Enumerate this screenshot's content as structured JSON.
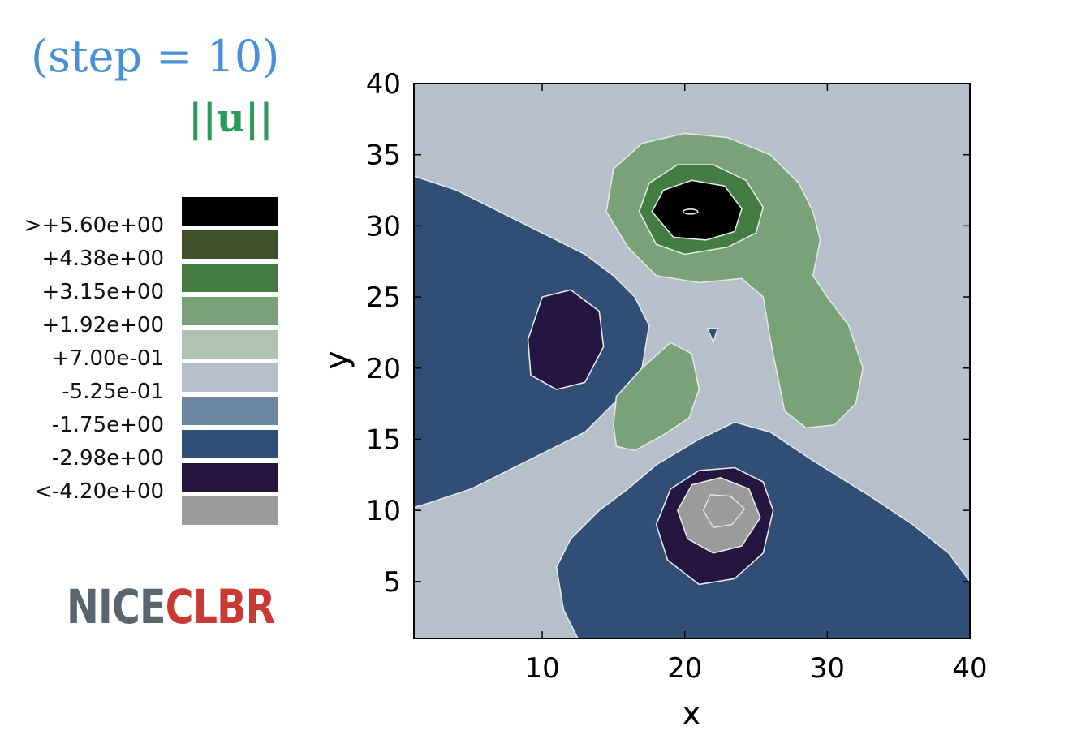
{
  "header": {
    "step_title": "(step = 10)",
    "field_name": "||u||"
  },
  "logo": {
    "part1": "NICE",
    "part2": "CLBR",
    "color1": "#5b6570",
    "color2": "#c93a35"
  },
  "chart_data": {
    "type": "contour",
    "xlabel": "x",
    "ylabel": "y",
    "xlim": [
      1,
      40
    ],
    "ylim": [
      1,
      40
    ],
    "xticks": [
      10,
      20,
      30,
      40
    ],
    "yticks": [
      5,
      10,
      15,
      20,
      25,
      30,
      35,
      40
    ],
    "grid": false,
    "legend_placement": "left",
    "levels": [
      {
        "label": ">+5.60e+00",
        "color": "#000000"
      },
      {
        "label": "+4.38e+00",
        "color": "#3f5128"
      },
      {
        "label": "+3.15e+00",
        "color": "#437d44"
      },
      {
        "label": "+1.92e+00",
        "color": "#79a279"
      },
      {
        "label": "+7.00e-01",
        "color": "#b0c2b2"
      },
      {
        "label": "-5.25e-01",
        "color": "#b5c0ca"
      },
      {
        "label": "-1.75e+00",
        "color": "#6d88a3"
      },
      {
        "label": "-2.98e+00",
        "color": "#314f76"
      },
      {
        "label": "<-4.20e+00",
        "color": "#241641"
      },
      {
        "label": "",
        "color": "#9b9b9b"
      }
    ],
    "regions": [
      {
        "name": "left-lobe",
        "level": 7,
        "points": [
          [
            1,
            33.5
          ],
          [
            4,
            32.5
          ],
          [
            8,
            30.5
          ],
          [
            11,
            29
          ],
          [
            13,
            28
          ],
          [
            15,
            26.5
          ],
          [
            16.5,
            25
          ],
          [
            17.5,
            23
          ],
          [
            17,
            20
          ],
          [
            15.5,
            18
          ],
          [
            13,
            15.5
          ],
          [
            9,
            13.5
          ],
          [
            5,
            11.5
          ],
          [
            2,
            10.5
          ],
          [
            1,
            10.2
          ]
        ]
      },
      {
        "name": "left-core",
        "level": 8,
        "points": [
          [
            9,
            22
          ],
          [
            10,
            25
          ],
          [
            12,
            25.5
          ],
          [
            14,
            24
          ],
          [
            14.3,
            21.5
          ],
          [
            13,
            19
          ],
          [
            11,
            18.5
          ],
          [
            9.2,
            19.5
          ]
        ]
      },
      {
        "name": "bottom-lobe",
        "level": 7,
        "points": [
          [
            12.5,
            1
          ],
          [
            11.5,
            3
          ],
          [
            11,
            6
          ],
          [
            12,
            8
          ],
          [
            14,
            10
          ],
          [
            16,
            11.5
          ],
          [
            18,
            13.2
          ],
          [
            21,
            15
          ],
          [
            23.5,
            16.2
          ],
          [
            26,
            15.5
          ],
          [
            29,
            13.5
          ],
          [
            33,
            11
          ],
          [
            36,
            9
          ],
          [
            38.5,
            7
          ],
          [
            40,
            5
          ],
          [
            40,
            1
          ]
        ]
      },
      {
        "name": "bottom-ring",
        "level": 8,
        "points": [
          [
            18,
            9
          ],
          [
            19,
            11.5
          ],
          [
            21,
            12.8
          ],
          [
            23.5,
            13
          ],
          [
            25.5,
            12
          ],
          [
            26.2,
            10
          ],
          [
            25.5,
            7
          ],
          [
            23.5,
            5.2
          ],
          [
            21,
            4.8
          ],
          [
            18.8,
            6.5
          ]
        ]
      },
      {
        "name": "bottom-core",
        "level": 9,
        "points": [
          [
            19.5,
            10
          ],
          [
            20.5,
            11.8
          ],
          [
            22.5,
            12.3
          ],
          [
            24.5,
            11.5
          ],
          [
            25.3,
            9.5
          ],
          [
            24,
            7.5
          ],
          [
            22,
            7
          ],
          [
            20.2,
            8
          ]
        ]
      },
      {
        "name": "top-outer",
        "level": 3,
        "points": [
          [
            14.5,
            31
          ],
          [
            15,
            34
          ],
          [
            17,
            35.8
          ],
          [
            20,
            36.5
          ],
          [
            23,
            36.2
          ],
          [
            26,
            35
          ],
          [
            28,
            33
          ],
          [
            29,
            31
          ],
          [
            29.5,
            29
          ],
          [
            29,
            26.5
          ],
          [
            30,
            25
          ],
          [
            31.5,
            23
          ],
          [
            32.5,
            20
          ],
          [
            32,
            17.5
          ],
          [
            30.5,
            16
          ],
          [
            28.5,
            15.8
          ],
          [
            27,
            17
          ],
          [
            26.5,
            19.5
          ],
          [
            26,
            22
          ],
          [
            25.5,
            25
          ],
          [
            24,
            26.3
          ],
          [
            21,
            26
          ],
          [
            18,
            26.5
          ],
          [
            16,
            28.5
          ]
        ]
      },
      {
        "name": "top-ring",
        "level": 2,
        "points": [
          [
            16.8,
            31
          ],
          [
            17.5,
            33
          ],
          [
            19.5,
            34.3
          ],
          [
            22,
            34.3
          ],
          [
            24.3,
            33.2
          ],
          [
            25.5,
            31.3
          ],
          [
            25,
            29.5
          ],
          [
            23,
            28.5
          ],
          [
            20,
            28
          ],
          [
            18,
            28.7
          ]
        ]
      },
      {
        "name": "top-core",
        "level": 0,
        "points": [
          [
            17.7,
            31
          ],
          [
            18.5,
            32.5
          ],
          [
            20.5,
            33.2
          ],
          [
            22.8,
            32.8
          ],
          [
            24,
            31.2
          ],
          [
            23.5,
            29.6
          ],
          [
            21.5,
            29
          ],
          [
            19.2,
            29.2
          ]
        ]
      },
      {
        "name": "center-blob",
        "level": 3,
        "points": [
          [
            15,
            16
          ],
          [
            15.2,
            18
          ],
          [
            17,
            20
          ],
          [
            19,
            21.8
          ],
          [
            20.5,
            21
          ],
          [
            21,
            18.5
          ],
          [
            20.3,
            16.5
          ],
          [
            18.5,
            15.3
          ],
          [
            16.5,
            14.2
          ],
          [
            15.2,
            14.5
          ]
        ]
      }
    ]
  }
}
